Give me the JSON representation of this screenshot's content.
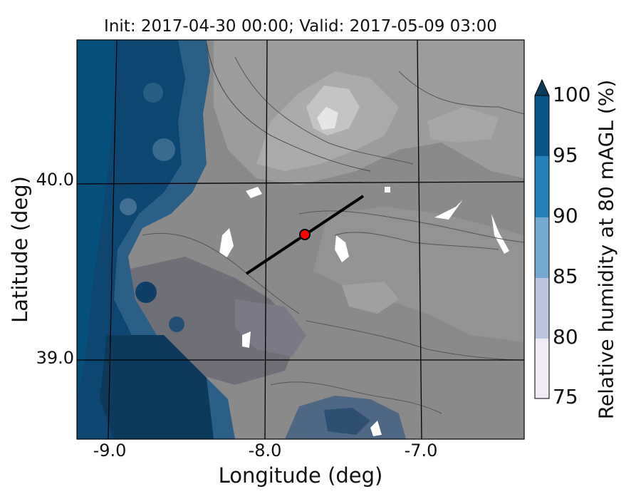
{
  "title": "Init: 2017-04-30 00:00; Valid: 2017-05-09 03:00",
  "axes": {
    "xlabel": "Longitude (deg)",
    "ylabel": "Latitude (deg)",
    "xticks": [
      "-9.0",
      "-8.0",
      "-7.0"
    ],
    "yticks": [
      "40.0",
      "39.0"
    ]
  },
  "colorbar": {
    "label": "Relative humidity at 80 mAGL (%)",
    "ticks": [
      "100",
      "95",
      "90",
      "85",
      "80",
      "75"
    ],
    "levels": [
      75,
      80,
      85,
      90,
      95,
      100
    ],
    "colors": [
      "#efeaf3",
      "#bcc6e0",
      "#74a9cf",
      "#2383ba",
      "#095688",
      "#0b3a5a"
    ],
    "extend": "max"
  },
  "map": {
    "background_color": "#8c8c8c",
    "ocean_color": "#05507a",
    "transect_color": "#000000",
    "point_color": "#ff0000"
  }
}
